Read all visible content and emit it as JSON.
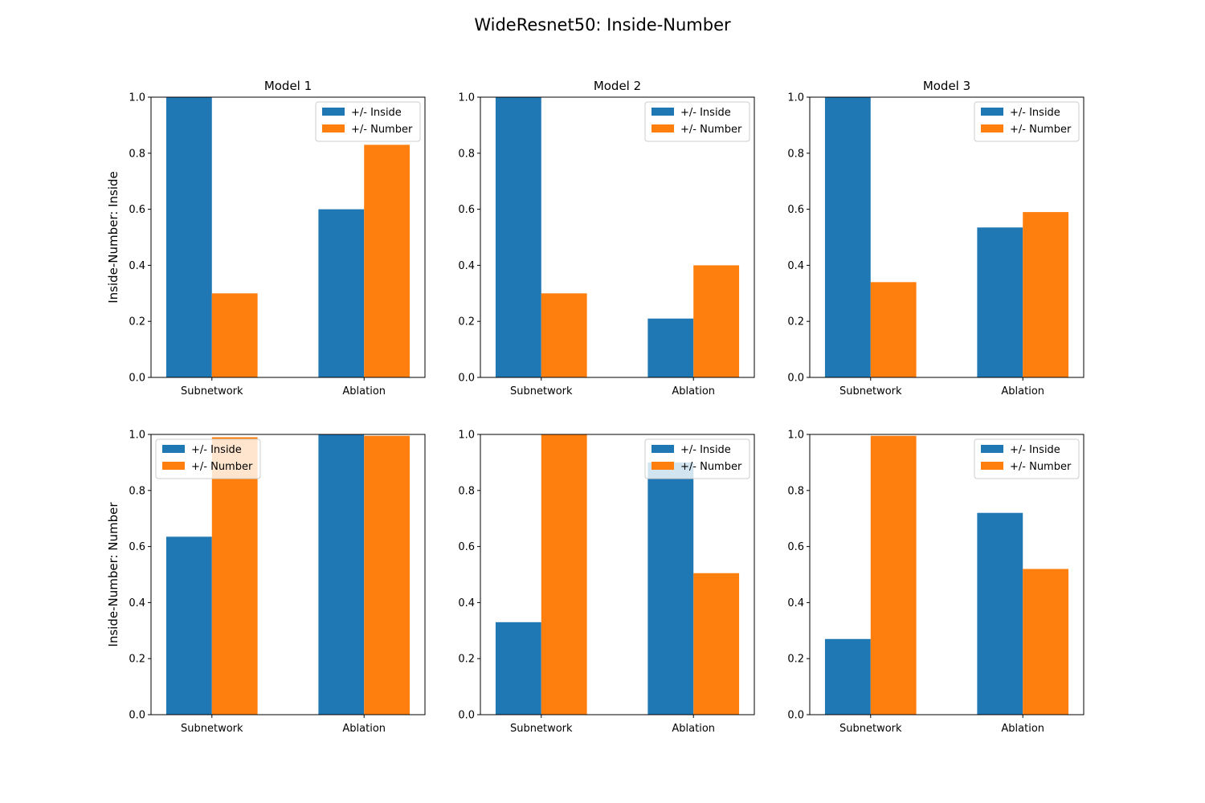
{
  "figure": {
    "title": "WideResnet50: Inside-Number"
  },
  "colors": {
    "inside": "#1f77b4",
    "number": "#ff7f0e"
  },
  "chart_data": [
    {
      "type": "bar",
      "title": "Model 1",
      "ylabel": "Inside-Number: Inside",
      "ylim": [
        0,
        1.0
      ],
      "yticks": [
        "0.0",
        "0.2",
        "0.4",
        "0.6",
        "0.8",
        "1.0"
      ],
      "categories": [
        "Subnetwork",
        "Ablation"
      ],
      "legend_position": "upper right",
      "series": [
        {
          "name": "+/- Inside",
          "values": [
            1.0,
            0.6
          ]
        },
        {
          "name": "+/- Number",
          "values": [
            0.3,
            0.83
          ]
        }
      ]
    },
    {
      "type": "bar",
      "title": "Model 2",
      "ylabel": "",
      "ylim": [
        0,
        1.0
      ],
      "yticks": [
        "0.0",
        "0.2",
        "0.4",
        "0.6",
        "0.8",
        "1.0"
      ],
      "categories": [
        "Subnetwork",
        "Ablation"
      ],
      "legend_position": "upper right",
      "series": [
        {
          "name": "+/- Inside",
          "values": [
            1.0,
            0.21
          ]
        },
        {
          "name": "+/- Number",
          "values": [
            0.3,
            0.4
          ]
        }
      ]
    },
    {
      "type": "bar",
      "title": "Model 3",
      "ylabel": "",
      "ylim": [
        0,
        1.0
      ],
      "yticks": [
        "0.0",
        "0.2",
        "0.4",
        "0.6",
        "0.8",
        "1.0"
      ],
      "categories": [
        "Subnetwork",
        "Ablation"
      ],
      "legend_position": "upper right",
      "series": [
        {
          "name": "+/- Inside",
          "values": [
            1.0,
            0.535
          ]
        },
        {
          "name": "+/- Number",
          "values": [
            0.34,
            0.59
          ]
        }
      ]
    },
    {
      "type": "bar",
      "title": "",
      "ylabel": "Inside-Number: Number",
      "ylim": [
        0,
        1.0
      ],
      "yticks": [
        "0.0",
        "0.2",
        "0.4",
        "0.6",
        "0.8",
        "1.0"
      ],
      "categories": [
        "Subnetwork",
        "Ablation"
      ],
      "legend_position": "upper left",
      "series": [
        {
          "name": "+/- Inside",
          "values": [
            0.635,
            1.0
          ]
        },
        {
          "name": "+/- Number",
          "values": [
            0.99,
            0.995
          ]
        }
      ]
    },
    {
      "type": "bar",
      "title": "",
      "ylabel": "",
      "ylim": [
        0,
        1.0
      ],
      "yticks": [
        "0.0",
        "0.2",
        "0.4",
        "0.6",
        "0.8",
        "1.0"
      ],
      "categories": [
        "Subnetwork",
        "Ablation"
      ],
      "legend_position": "upper right",
      "series": [
        {
          "name": "+/- Inside",
          "values": [
            0.33,
            0.9
          ]
        },
        {
          "name": "+/- Number",
          "values": [
            1.0,
            0.505
          ]
        }
      ]
    },
    {
      "type": "bar",
      "title": "",
      "ylabel": "",
      "ylim": [
        0,
        1.0
      ],
      "yticks": [
        "0.0",
        "0.2",
        "0.4",
        "0.6",
        "0.8",
        "1.0"
      ],
      "categories": [
        "Subnetwork",
        "Ablation"
      ],
      "legend_position": "upper right",
      "series": [
        {
          "name": "+/- Inside",
          "values": [
            0.27,
            0.72
          ]
        },
        {
          "name": "+/- Number",
          "values": [
            0.995,
            0.52
          ]
        }
      ]
    }
  ]
}
